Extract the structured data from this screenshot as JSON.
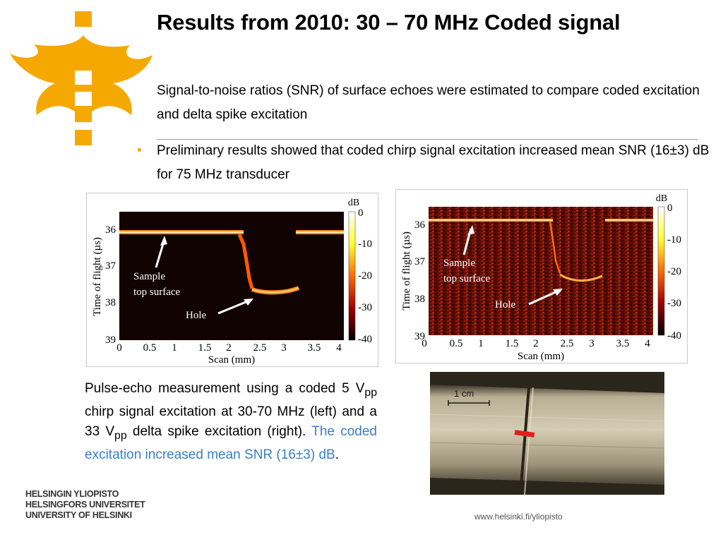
{
  "slide": {
    "title": "Results from 2010: 30 – 70 MHz Coded signal",
    "paragraph_1": "Signal-to-noise ratios (SNR) of surface echoes were estimated to compare coded excitation and delta spike excitation",
    "bullet_1": "Preliminary results showed that coded chirp signal excitation increased mean SNR (16±3) dB for 75 MHz transducer"
  },
  "caption": {
    "part1": "Pulse-echo measurement using a coded 5 V",
    "sub1": "pp",
    "part2": " chirp signal excitation at 30-70 MHz (left) and a 33 V",
    "sub2": "pp",
    "part3": " delta spike excitation (right). ",
    "highlight": "The coded excitation increased mean SNR (16±3) dB",
    "end": "."
  },
  "figures": {
    "ylabel": "Time of flight (µs)",
    "xlabel": "Scan (mm)",
    "y_ticks": [
      "36",
      "37",
      "38",
      "39"
    ],
    "x_ticks": [
      "0",
      "0.5",
      "1",
      "1.5",
      "2",
      "2.5",
      "3",
      "3.5",
      "4"
    ],
    "colorbar_unit": "dB",
    "colorbar_ticks": [
      "0",
      "-10",
      "-20",
      "-30",
      "-40"
    ],
    "annotation_surface_1": "Sample",
    "annotation_surface_2": "top surface",
    "annotation_hole": "Hole"
  },
  "photo": {
    "scale_label": "1 cm"
  },
  "brand": {
    "line1": "HELSINGIN YLIOPISTO",
    "line2": "HELSINGFORS UNIVERSITET",
    "line3": "UNIVERSITY OF HELSINKI",
    "url": "www.helsinki.fi/yliopisto",
    "accent_color": "#f5a800",
    "link_color": "#3a7fc4"
  }
}
